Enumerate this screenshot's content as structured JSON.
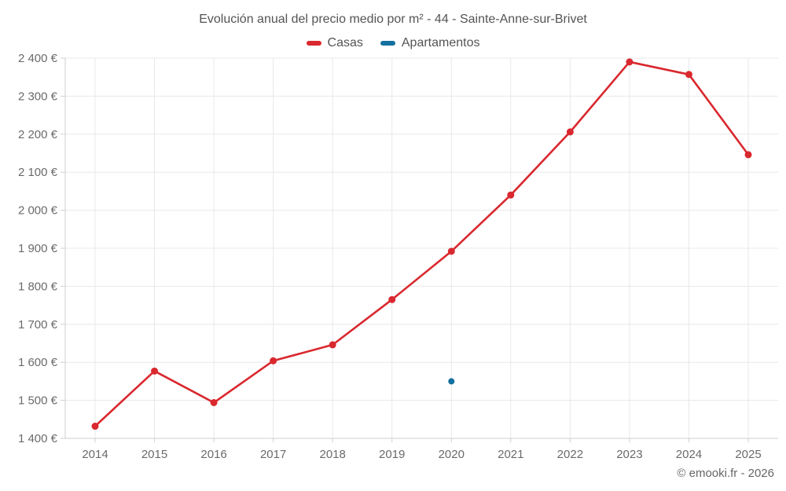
{
  "chart": {
    "title": "Evolución anual del precio medio por m² - 44 - Sainte-Anne-sur-Brivet",
    "legend": [
      {
        "label": "Casas",
        "color": "#d9282e"
      },
      {
        "label": "Apartamentos",
        "color": "#1470a0"
      }
    ]
  },
  "footer": {
    "text": "© emooki.fr - 2026"
  },
  "chart_data": {
    "type": "line",
    "title": "Evolución anual del precio medio por m² - 44 - Sainte-Anne-sur-Brivet",
    "x": [
      2014,
      2015,
      2016,
      2017,
      2018,
      2019,
      2020,
      2021,
      2022,
      2023,
      2024,
      2025
    ],
    "xtick_labels": [
      "2014",
      "2015",
      "2016",
      "2017",
      "2018",
      "2019",
      "2020",
      "2021",
      "2022",
      "2023",
      "2024",
      "2025"
    ],
    "series": [
      {
        "name": "Casas",
        "color": "#d9282e",
        "values": [
          1432,
          1577,
          1494,
          1604,
          1646,
          1765,
          1892,
          2040,
          2206,
          2390,
          2357,
          2146
        ]
      },
      {
        "name": "Apartamentos",
        "color": "#1470a0",
        "values": [
          null,
          null,
          null,
          null,
          null,
          null,
          1550,
          null,
          null,
          null,
          null,
          null
        ]
      }
    ],
    "ylim": [
      1400,
      2400
    ],
    "yticks": [
      1400,
      1500,
      1600,
      1700,
      1800,
      1900,
      2000,
      2100,
      2200,
      2300,
      2400
    ],
    "ytick_labels": [
      "1 400 €",
      "1 500 €",
      "1 600 €",
      "1 700 €",
      "1 800 €",
      "1 900 €",
      "2 000 €",
      "2 100 €",
      "2 200 €",
      "2 300 €",
      "2 400 €"
    ],
    "xlabel": "",
    "ylabel": "",
    "grid": true,
    "legend_position": "top",
    "point_markers": true
  }
}
